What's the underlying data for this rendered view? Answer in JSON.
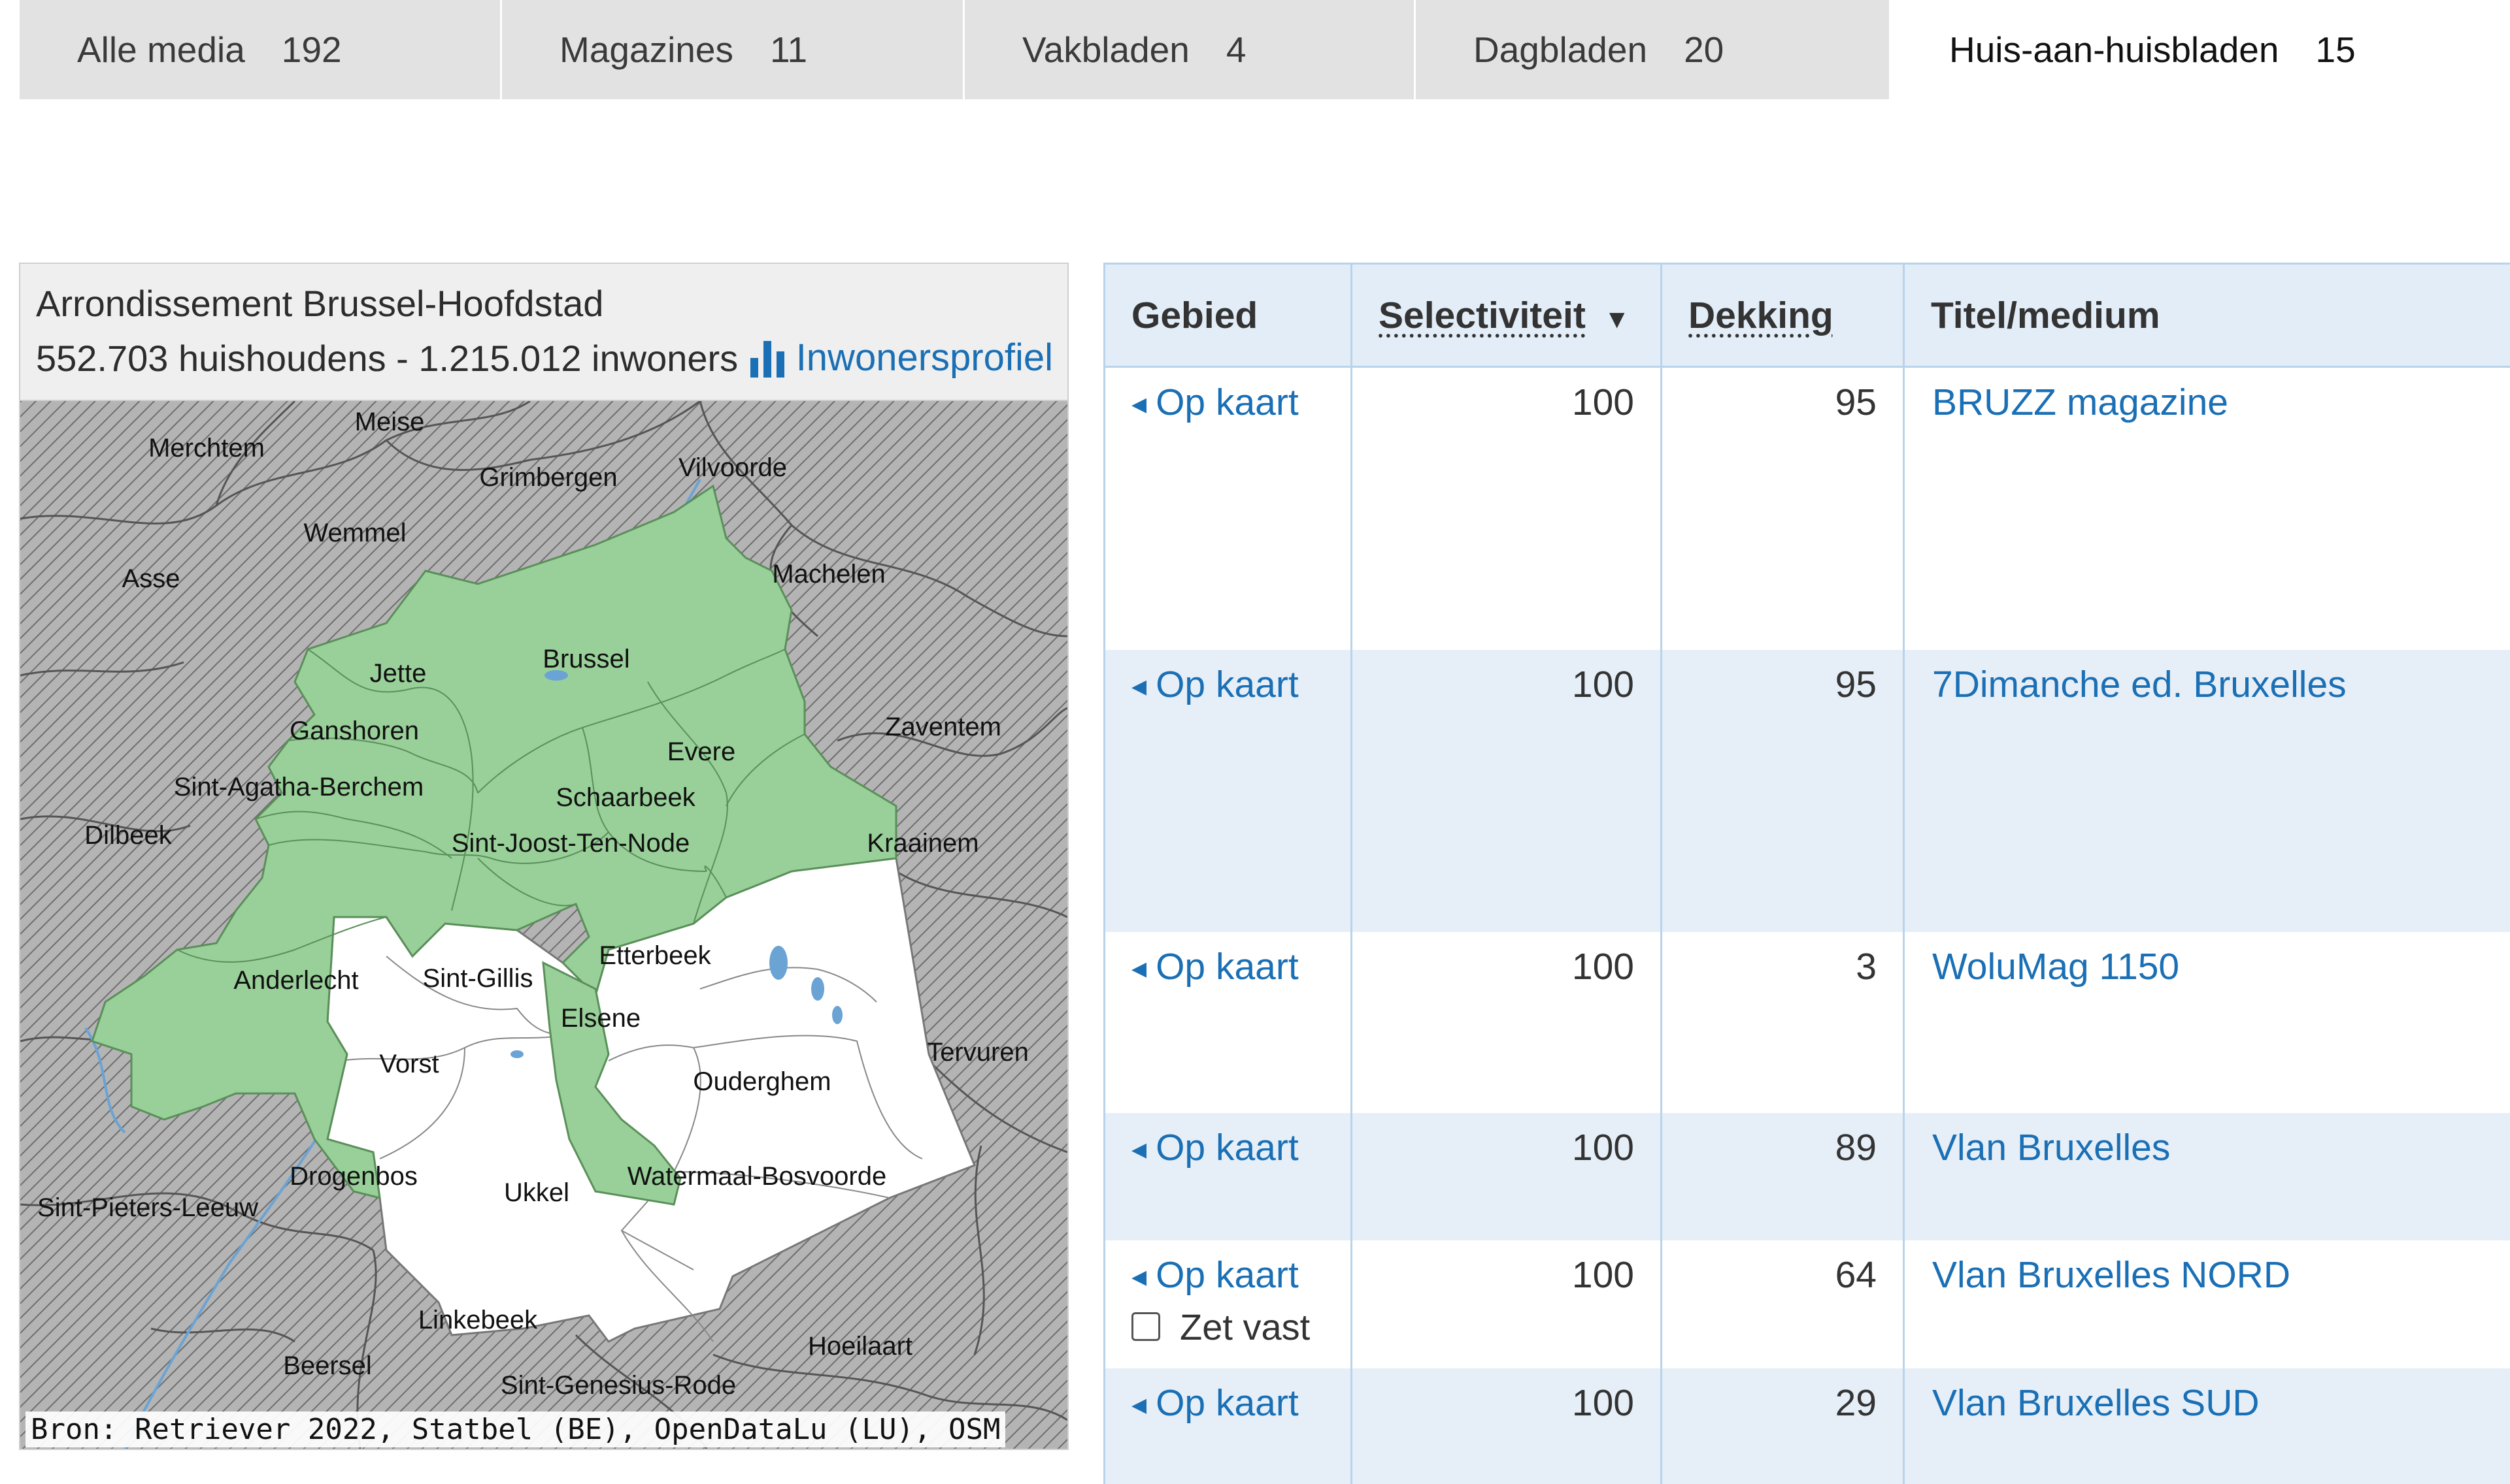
{
  "tabs": [
    {
      "label": "Alle media",
      "count": "192"
    },
    {
      "label": "Magazines",
      "count": "11"
    },
    {
      "label": "Vakbladen",
      "count": "4"
    },
    {
      "label": "Dagbladen",
      "count": "20"
    },
    {
      "label": "Huis-aan-huisbladen",
      "count": "15"
    }
  ],
  "map": {
    "title": "Arrondissement Brussel-Hoofdstad",
    "stats": "552.703 huishoudens - 1.215.012 inwoners",
    "profile_link": "Inwonersprofiel",
    "profile_icon": "bar-chart-icon",
    "source": "Bron: Retriever 2022, Statbel (BE), OpenDataLu (LU), OSM",
    "highlight_color": "#99d099",
    "labels": {
      "meise": "Meise",
      "merchtem": "Merchtem",
      "grimbergen": "Grimbergen",
      "vilvoorde": "Vilvoorde",
      "wemmel": "Wemmel",
      "asse": "Asse",
      "machelen": "Machelen",
      "brussel": "Brussel",
      "jette": "Jette",
      "ganshoren": "Ganshoren",
      "evere": "Evere",
      "zaventem": "Zaventem",
      "sint_agatha_berchem": "Sint-Agatha-Berchem",
      "schaarbeek": "Schaarbeek",
      "dilbeek": "Dilbeek",
      "sint_joost": "Sint-Joost-Ten-Node",
      "kraainem": "Kraainem",
      "etterbeek": "Etterbeek",
      "anderlecht": "Anderlecht",
      "sint_gillis": "Sint-Gillis",
      "elsene": "Elsene",
      "tervuren": "Tervuren",
      "vorst": "Vorst",
      "ouderghem": "Ouderghem",
      "drogenbos": "Drogenbos",
      "watermaal": "Watermaal-Bosvoorde",
      "ukkel": "Ukkel",
      "sint_pieters_leeuw": "Sint-Pieters-Leeuw",
      "linkebeek": "Linkebeek",
      "hoeilaart": "Hoeilaart",
      "beersel": "Beersel",
      "sint_genesius_rode": "Sint-Genesius-Rode"
    }
  },
  "table": {
    "headers": {
      "gebied": "Gebied",
      "selectiviteit": "Selectiviteit",
      "sort_arrow": "▼",
      "dekking": "Dekking",
      "titel": "Titel/medium"
    },
    "link_label": "Op kaart",
    "pin_label": "Zet vast",
    "rows": [
      {
        "selectiviteit": "100",
        "dekking": "95",
        "titel": "BRUZZ magazine"
      },
      {
        "selectiviteit": "100",
        "dekking": "95",
        "titel": "7Dimanche ed. Bruxelles"
      },
      {
        "selectiviteit": "100",
        "dekking": "3",
        "titel": "WoluMag 1150"
      },
      {
        "selectiviteit": "100",
        "dekking": "89",
        "titel": "Vlan Bruxelles"
      },
      {
        "selectiviteit": "100",
        "dekking": "64",
        "titel": "Vlan Bruxelles NORD"
      },
      {
        "selectiviteit": "100",
        "dekking": "29",
        "titel": "Vlan Bruxelles SUD"
      }
    ]
  },
  "colors": {
    "link": "#1a6fb5",
    "tab_bg": "#e2e2e2",
    "table_header_bg": "#e3edf7",
    "table_stripe": "#e6eff8",
    "table_border": "#b9d3ea"
  }
}
